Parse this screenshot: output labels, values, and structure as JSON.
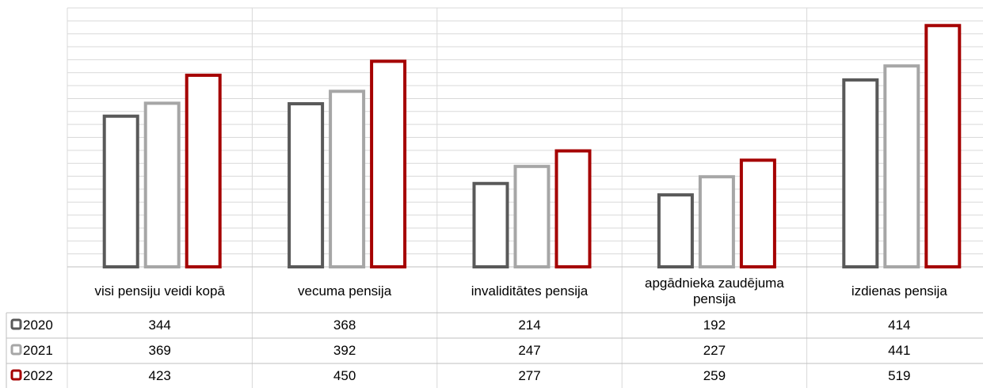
{
  "chart_data": {
    "type": "bar",
    "categories": [
      [
        "visi pensiju veidi kopā"
      ],
      [
        "vecuma pensija"
      ],
      [
        "invaliditātes pensija"
      ],
      [
        "apgādnieka zaudējuma",
        "pensija"
      ],
      [
        "izdienas pensija"
      ]
    ],
    "series": [
      {
        "name": "2020",
        "values": [
          344,
          368,
          214,
          192,
          414
        ],
        "color": "#595959"
      },
      {
        "name": "2021",
        "values": [
          369,
          392,
          247,
          227,
          441
        ],
        "color": "#a6a6a6"
      },
      {
        "name": "2022",
        "values": [
          423,
          450,
          277,
          259,
          519
        ],
        "color": "#a50000"
      }
    ],
    "ylim": [
      50,
      550
    ],
    "y_gridline_step": 25,
    "grid": true,
    "data_table": true
  }
}
